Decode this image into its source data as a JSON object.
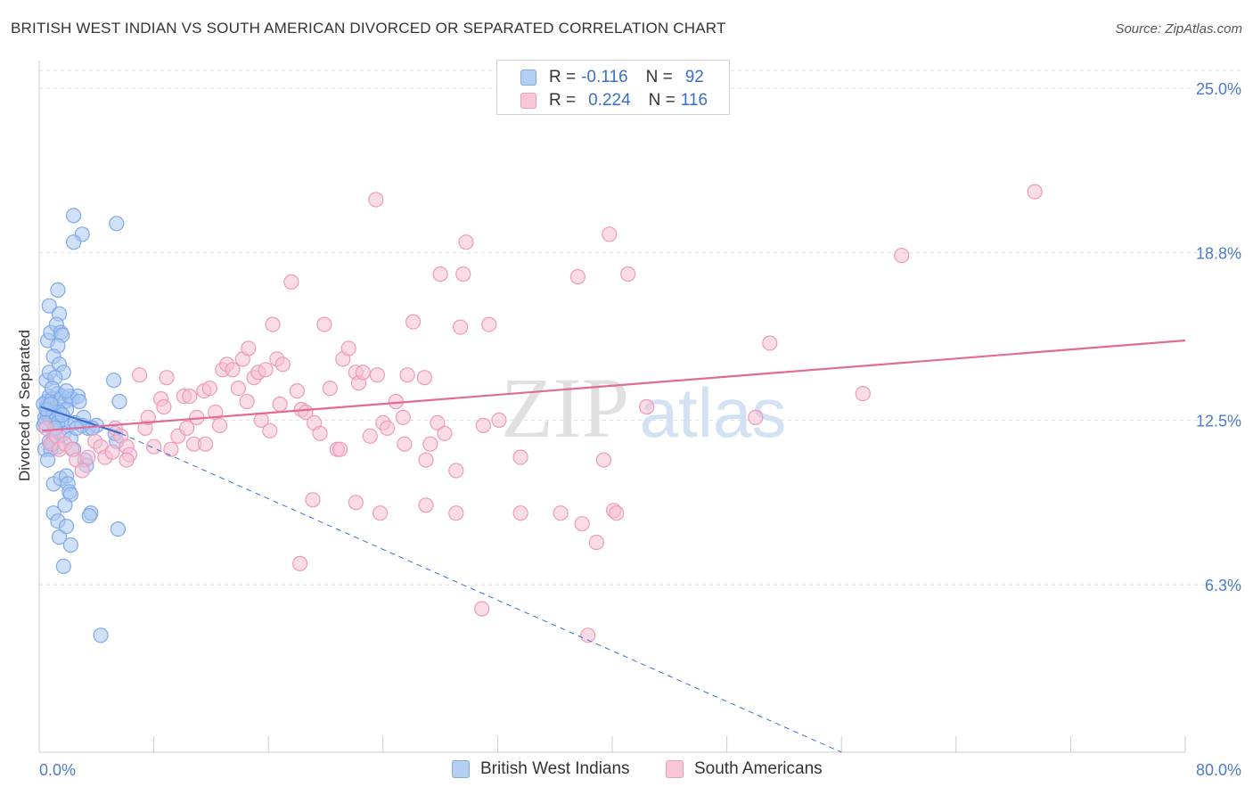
{
  "title": "BRITISH WEST INDIAN VS SOUTH AMERICAN DIVORCED OR SEPARATED CORRELATION CHART",
  "source": "Source: ZipAtlas.com",
  "watermark": {
    "zip": "ZIP",
    "atlas": "atlas"
  },
  "legend": {
    "rows": [
      {
        "r_label": "R =",
        "r_value": "-0.116",
        "n_label": "N =",
        "n_value": "92"
      },
      {
        "r_label": "R =",
        "r_value": "0.224",
        "n_label": "N =",
        "n_value": "116"
      }
    ]
  },
  "chart_data": {
    "type": "scatter",
    "title": "BRITISH WEST INDIAN VS SOUTH AMERICAN DIVORCED OR SEPARATED CORRELATION CHART",
    "xlabel": "",
    "ylabel": "Divorced or Separated",
    "xlim": [
      0,
      80
    ],
    "ylim": [
      0,
      25.9
    ],
    "x_tick_labels": [
      "0.0%",
      "80.0%"
    ],
    "y_ticks": [
      6.3,
      12.5,
      18.8,
      25.0
    ],
    "y_tick_labels": [
      "6.3%",
      "12.5%",
      "18.8%",
      "25.0%"
    ],
    "grid": true,
    "legend_position": "top-center",
    "series": [
      {
        "name": "British West Indians",
        "color": "#7fa9e8",
        "fill": "#a9c6f0",
        "trend_color": "#3a6fd0",
        "trend_solid": {
          "x": [
            0.1,
            5.7
          ],
          "y": [
            13.0,
            12.0
          ]
        },
        "trend_dashed": {
          "x": [
            5.7,
            56.0
          ],
          "y": [
            12.0,
            0.0
          ]
        },
        "points": [
          [
            0.3,
            12.3
          ],
          [
            0.4,
            12.6
          ],
          [
            0.5,
            13.0
          ],
          [
            0.4,
            11.4
          ],
          [
            0.6,
            12.9
          ],
          [
            0.5,
            13.2
          ],
          [
            0.7,
            13.4
          ],
          [
            0.6,
            12.7
          ],
          [
            0.8,
            12.5
          ],
          [
            0.3,
            13.1
          ],
          [
            0.9,
            13.3
          ],
          [
            1.0,
            12.8
          ],
          [
            0.5,
            14.0
          ],
          [
            0.7,
            14.3
          ],
          [
            0.6,
            15.5
          ],
          [
            0.8,
            15.8
          ],
          [
            0.7,
            16.8
          ],
          [
            1.3,
            17.4
          ],
          [
            1.4,
            16.5
          ],
          [
            1.2,
            16.1
          ],
          [
            1.5,
            15.8
          ],
          [
            1.6,
            15.7
          ],
          [
            1.3,
            15.3
          ],
          [
            1.0,
            14.9
          ],
          [
            1.4,
            14.6
          ],
          [
            1.7,
            14.3
          ],
          [
            1.1,
            14.1
          ],
          [
            1.3,
            13.5
          ],
          [
            1.5,
            13.3
          ],
          [
            1.6,
            13.4
          ],
          [
            1.8,
            13.2
          ],
          [
            2.1,
            13.4
          ],
          [
            2.3,
            13.3
          ],
          [
            2.7,
            13.4
          ],
          [
            2.8,
            13.2
          ],
          [
            1.9,
            12.9
          ],
          [
            1.2,
            12.6
          ],
          [
            1.6,
            12.5
          ],
          [
            2.0,
            12.3
          ],
          [
            2.5,
            12.4
          ],
          [
            3.1,
            12.6
          ],
          [
            3.4,
            12.2
          ],
          [
            4.0,
            12.3
          ],
          [
            3.0,
            12.3
          ],
          [
            1.0,
            11.9
          ],
          [
            1.3,
            11.5
          ],
          [
            0.8,
            11.4
          ],
          [
            0.6,
            11.0
          ],
          [
            0.9,
            11.6
          ],
          [
            1.1,
            12.1
          ],
          [
            1.4,
            12.8
          ],
          [
            1.7,
            12.0
          ],
          [
            2.2,
            11.8
          ],
          [
            2.4,
            11.4
          ],
          [
            3.2,
            11.0
          ],
          [
            3.3,
            10.8
          ],
          [
            1.0,
            10.1
          ],
          [
            1.5,
            10.3
          ],
          [
            1.9,
            10.4
          ],
          [
            2.0,
            10.1
          ],
          [
            2.1,
            9.8
          ],
          [
            2.2,
            9.7
          ],
          [
            1.8,
            9.3
          ],
          [
            1.0,
            9.0
          ],
          [
            1.3,
            8.7
          ],
          [
            1.4,
            8.1
          ],
          [
            1.9,
            8.5
          ],
          [
            2.2,
            7.8
          ],
          [
            1.7,
            7.0
          ],
          [
            3.6,
            9.0
          ],
          [
            3.5,
            8.9
          ],
          [
            5.5,
            8.4
          ],
          [
            5.2,
            14.0
          ],
          [
            5.6,
            13.2
          ],
          [
            5.4,
            11.7
          ],
          [
            5.3,
            12.0
          ],
          [
            1.3,
            12.4
          ],
          [
            0.9,
            13.7
          ],
          [
            2.4,
            20.2
          ],
          [
            3.0,
            19.5
          ],
          [
            2.4,
            19.2
          ],
          [
            5.4,
            19.9
          ],
          [
            0.5,
            12.9
          ],
          [
            0.4,
            12.4
          ],
          [
            0.8,
            13.1
          ],
          [
            1.6,
            12.7
          ],
          [
            2.6,
            12.2
          ],
          [
            3.7,
            12.2
          ],
          [
            4.3,
            4.4
          ],
          [
            1.1,
            12.2
          ],
          [
            0.7,
            11.7
          ],
          [
            1.9,
            13.6
          ]
        ]
      },
      {
        "name": "South Americans",
        "color": "#ee9ab8",
        "fill": "#f6bfd3",
        "trend_color": "#e06b95",
        "trend_solid": {
          "x": [
            0.2,
            80.0
          ],
          "y": [
            12.1,
            15.5
          ]
        },
        "points": [
          [
            0.5,
            12.2
          ],
          [
            0.8,
            11.6
          ],
          [
            1.2,
            11.9
          ],
          [
            1.4,
            11.4
          ],
          [
            1.8,
            11.6
          ],
          [
            2.3,
            11.4
          ],
          [
            2.6,
            11.0
          ],
          [
            3.0,
            10.6
          ],
          [
            3.4,
            11.1
          ],
          [
            3.9,
            11.7
          ],
          [
            4.3,
            11.5
          ],
          [
            4.6,
            11.1
          ],
          [
            5.1,
            11.3
          ],
          [
            5.3,
            12.2
          ],
          [
            5.7,
            11.9
          ],
          [
            6.1,
            11.5
          ],
          [
            6.3,
            11.2
          ],
          [
            6.1,
            11.0
          ],
          [
            7.0,
            14.2
          ],
          [
            7.4,
            12.2
          ],
          [
            7.6,
            12.6
          ],
          [
            8.0,
            11.5
          ],
          [
            8.5,
            13.3
          ],
          [
            8.7,
            13.0
          ],
          [
            8.9,
            14.1
          ],
          [
            9.2,
            11.4
          ],
          [
            9.7,
            11.9
          ],
          [
            10.1,
            13.4
          ],
          [
            10.3,
            12.2
          ],
          [
            10.5,
            13.4
          ],
          [
            10.8,
            11.6
          ],
          [
            11.0,
            12.6
          ],
          [
            11.5,
            13.6
          ],
          [
            11.6,
            11.6
          ],
          [
            11.9,
            13.7
          ],
          [
            12.3,
            12.8
          ],
          [
            12.6,
            12.3
          ],
          [
            12.8,
            14.4
          ],
          [
            13.1,
            14.6
          ],
          [
            13.5,
            14.4
          ],
          [
            13.9,
            13.7
          ],
          [
            14.2,
            14.8
          ],
          [
            14.6,
            15.2
          ],
          [
            15.0,
            14.1
          ],
          [
            15.3,
            14.3
          ],
          [
            15.5,
            12.5
          ],
          [
            15.8,
            14.4
          ],
          [
            16.1,
            12.1
          ],
          [
            16.6,
            14.8
          ],
          [
            16.8,
            13.1
          ],
          [
            17.0,
            14.6
          ],
          [
            16.3,
            16.1
          ],
          [
            17.6,
            17.7
          ],
          [
            18.0,
            13.6
          ],
          [
            18.3,
            12.9
          ],
          [
            18.6,
            12.8
          ],
          [
            19.2,
            12.4
          ],
          [
            19.6,
            12.0
          ],
          [
            19.9,
            16.1
          ],
          [
            20.3,
            13.7
          ],
          [
            20.8,
            11.4
          ],
          [
            21.0,
            11.4
          ],
          [
            21.2,
            14.8
          ],
          [
            21.6,
            15.2
          ],
          [
            22.1,
            14.3
          ],
          [
            22.3,
            13.9
          ],
          [
            22.6,
            14.3
          ],
          [
            23.1,
            11.9
          ],
          [
            23.6,
            14.2
          ],
          [
            24.0,
            12.4
          ],
          [
            24.3,
            12.2
          ],
          [
            24.9,
            13.2
          ],
          [
            25.5,
            11.6
          ],
          [
            25.7,
            14.2
          ],
          [
            26.1,
            16.2
          ],
          [
            27.0,
            11.0
          ],
          [
            27.3,
            11.6
          ],
          [
            27.8,
            12.4
          ],
          [
            28.3,
            12.0
          ],
          [
            29.1,
            10.6
          ],
          [
            29.4,
            16.0
          ],
          [
            28.0,
            18.0
          ],
          [
            29.6,
            18.0
          ],
          [
            29.8,
            19.2
          ],
          [
            31.0,
            12.3
          ],
          [
            32.1,
            12.5
          ],
          [
            29.1,
            9.0
          ],
          [
            30.9,
            5.4
          ],
          [
            31.4,
            16.1
          ],
          [
            23.5,
            20.8
          ],
          [
            23.8,
            9.0
          ],
          [
            19.1,
            9.5
          ],
          [
            22.1,
            9.4
          ],
          [
            27.0,
            9.3
          ],
          [
            33.6,
            9.0
          ],
          [
            33.6,
            11.1
          ],
          [
            36.4,
            9.0
          ],
          [
            37.6,
            17.9
          ],
          [
            37.9,
            8.6
          ],
          [
            38.3,
            4.4
          ],
          [
            38.9,
            7.9
          ],
          [
            39.4,
            11.0
          ],
          [
            39.8,
            19.5
          ],
          [
            40.1,
            9.1
          ],
          [
            40.3,
            9.0
          ],
          [
            41.1,
            18.0
          ],
          [
            42.4,
            13.0
          ],
          [
            50.0,
            12.6
          ],
          [
            51.0,
            15.4
          ],
          [
            57.5,
            13.5
          ],
          [
            60.2,
            18.7
          ],
          [
            69.5,
            21.1
          ],
          [
            18.2,
            7.1
          ],
          [
            26.9,
            14.1
          ],
          [
            25.4,
            12.6
          ],
          [
            14.5,
            13.2
          ]
        ]
      }
    ]
  }
}
